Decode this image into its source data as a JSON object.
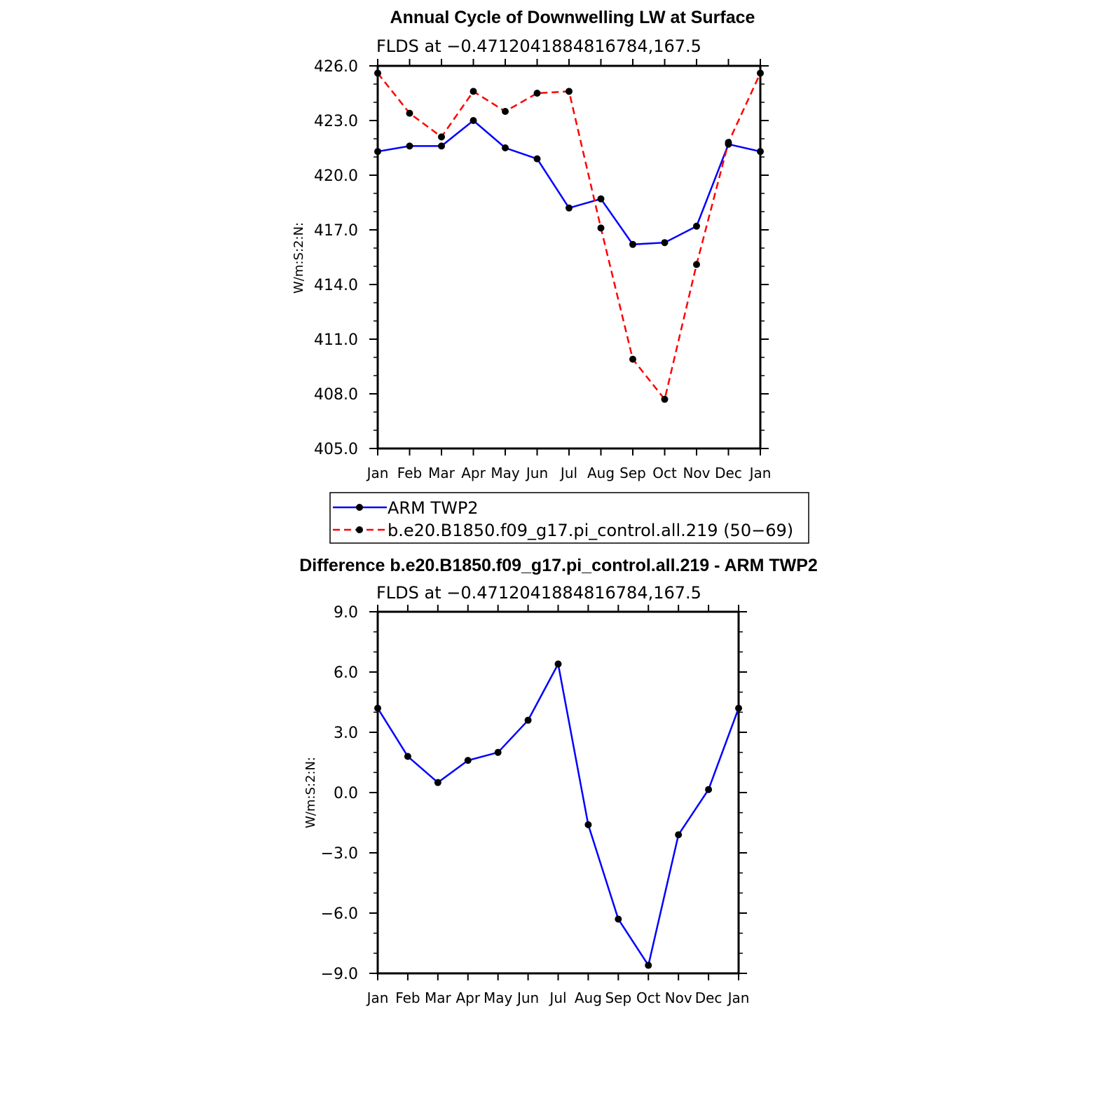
{
  "chart_data": [
    {
      "type": "line",
      "title": "Annual Cycle of Downwelling LW at Surface",
      "subtitle": "FLDS at −0.4712041884816784,167.5",
      "ylabel": "W/m:S:2:N:",
      "categories": [
        "Jan",
        "Feb",
        "Mar",
        "Apr",
        "May",
        "Jun",
        "Jul",
        "Aug",
        "Sep",
        "Oct",
        "Nov",
        "Dec",
        "Jan"
      ],
      "ylim": [
        405.0,
        426.0
      ],
      "yticks": [
        "426.0",
        "423.0",
        "420.0",
        "417.0",
        "414.0",
        "411.0",
        "408.0",
        "405.0"
      ],
      "ytick_values": [
        426,
        423,
        420,
        417,
        414,
        411,
        408,
        405
      ],
      "series": [
        {
          "name": "ARM TWP2",
          "color": "#0000ff",
          "dashed": false,
          "values": [
            421.3,
            421.6,
            421.6,
            423.0,
            421.5,
            420.9,
            418.2,
            418.7,
            416.2,
            416.3,
            417.2,
            421.7,
            421.3
          ]
        },
        {
          "name": "b.e20.B1850.f09_g17.pi_control.all.219 (50−69)",
          "color": "#ff0000",
          "dashed": true,
          "values": [
            425.6,
            423.4,
            422.1,
            424.6,
            423.5,
            424.5,
            424.6,
            417.1,
            409.9,
            407.7,
            415.1,
            421.8,
            425.6
          ]
        }
      ],
      "legend": [
        "ARM TWP2",
        "b.e20.B1850.f09_g17.pi_control.all.219 (50−69)"
      ]
    },
    {
      "type": "line",
      "title": "Difference b.e20.B1850.f09_g17.pi_control.all.219 - ARM TWP2",
      "subtitle": "FLDS at −0.4712041884816784,167.5",
      "ylabel": "W/m:S:2:N:",
      "categories": [
        "Jan",
        "Feb",
        "Mar",
        "Apr",
        "May",
        "Jun",
        "Jul",
        "Aug",
        "Sep",
        "Oct",
        "Nov",
        "Dec",
        "Jan"
      ],
      "ylim": [
        -9.0,
        9.0
      ],
      "yticks": [
        "9.0",
        "6.0",
        "3.0",
        "0.0",
        "−3.0",
        "−6.0",
        "−9.0"
      ],
      "ytick_values": [
        9,
        6,
        3,
        0,
        -3,
        -6,
        -9
      ],
      "series": [
        {
          "name": "Difference",
          "color": "#0000ff",
          "dashed": false,
          "values": [
            4.2,
            1.8,
            0.5,
            1.6,
            2.0,
            3.6,
            6.4,
            -1.6,
            -6.3,
            -8.6,
            -2.1,
            0.15,
            4.2
          ]
        }
      ]
    }
  ]
}
